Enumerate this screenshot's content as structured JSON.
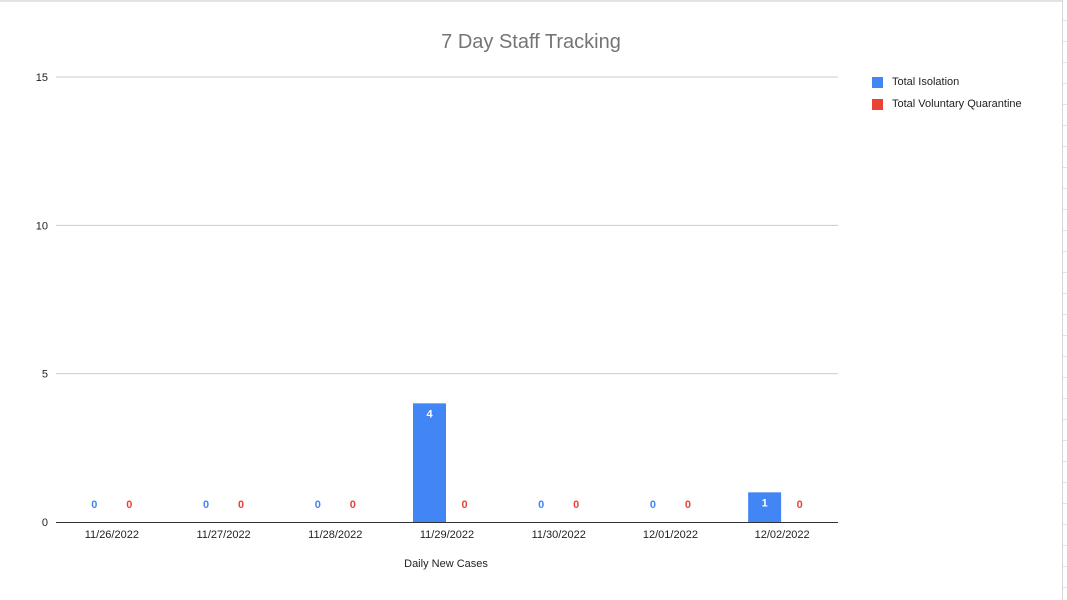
{
  "chart_data": {
    "type": "bar",
    "title": "7 Day Staff Tracking",
    "xlabel": "Daily New Cases",
    "ylabel": "",
    "ylim": [
      0,
      15
    ],
    "yticks": [
      0,
      5,
      10,
      15
    ],
    "categories": [
      "11/26/2022",
      "11/27/2022",
      "11/28/2022",
      "11/29/2022",
      "11/30/2022",
      "12/01/2022",
      "12/02/2022"
    ],
    "series": [
      {
        "name": "Total Isolation",
        "color": "#4285f4",
        "values": [
          0,
          0,
          0,
          4,
          0,
          0,
          1
        ]
      },
      {
        "name": "Total Voluntary Quarantine",
        "color": "#ea4335",
        "values": [
          0,
          0,
          0,
          0,
          0,
          0,
          0
        ]
      }
    ],
    "grid": true,
    "legend_position": "right",
    "data_labels": true
  }
}
